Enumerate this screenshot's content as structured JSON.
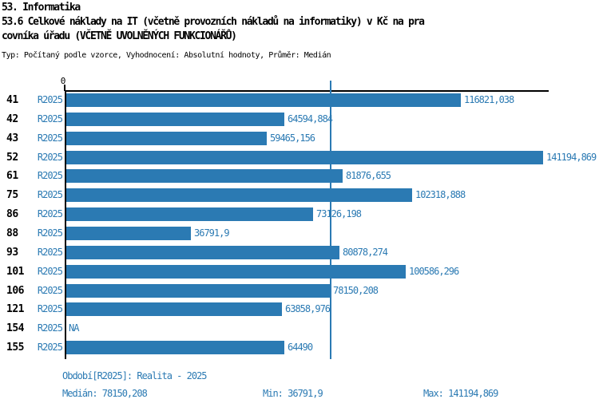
{
  "header": {
    "line1": "53. Informatika",
    "line2": "53.6 Celkové náklady na IT (včetně provozních nákladů na informatiky) v Kč na pra",
    "line3": "covníka úřadu (VČETNĚ UVOLNĚNÝCH FUNKCIONÁŘŮ)",
    "subtitle": "Typ: Počítaný podle vzorce, Vyhodnocení: Absolutní hodnoty, Průměr: Medián"
  },
  "chart_data": {
    "type": "bar",
    "orientation": "horizontal",
    "title": "53.6 Celkové náklady na IT (včetně provozních nákladů na informatiky) v Kč na pracovníka úřadu (VČETNĚ UVOLNĚNÝCH FUNKCIONÁŘŮ)",
    "series_name": "R2025",
    "categories": [
      "41",
      "42",
      "43",
      "52",
      "61",
      "75",
      "86",
      "88",
      "93",
      "101",
      "106",
      "121",
      "154",
      "155"
    ],
    "values": [
      116821.038,
      64594.884,
      59465.156,
      141194.869,
      81876.655,
      102318.888,
      73126.198,
      36791.9,
      80878.274,
      100586.296,
      78150.208,
      63858.976,
      null,
      64490
    ],
    "value_labels": [
      "116821,038",
      "64594,884",
      "59465,156",
      "141194,869",
      "81876,655",
      "102318,888",
      "73126,198",
      "36791,9",
      "80878,274",
      "100586,296",
      "78150,208",
      "63858,976",
      "NA",
      "64490"
    ],
    "xlim": [
      0,
      141194.869
    ],
    "zero_tick_label": "0",
    "median_value": 78150.208,
    "median_line": true,
    "grid": false,
    "legend_position": "none"
  },
  "footer": {
    "period": "Období[R2025]: Realita - 2025",
    "median": "Medián: 78150,208",
    "min": "Min: 36791,9",
    "max": "Max: 141194,869"
  },
  "colors": {
    "bar": "#2b7ab3",
    "blue_text": "#2b7ab3",
    "axis": "#000000",
    "background": "#ffffff"
  }
}
